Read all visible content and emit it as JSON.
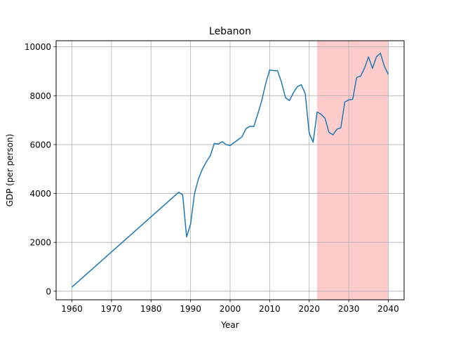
{
  "chart_data": {
    "type": "line",
    "title": "Lebanon",
    "xlabel": "Year",
    "ylabel": "GDP (per person)",
    "xlim": [
      1956,
      2044
    ],
    "ylim": [
      -350,
      10250
    ],
    "xticks": [
      1960,
      1970,
      1980,
      1990,
      2000,
      2010,
      2020,
      2030,
      2040
    ],
    "yticks": [
      0,
      2000,
      4000,
      6000,
      8000,
      10000
    ],
    "grid": true,
    "highlight_span": {
      "x_start": 2022,
      "x_end": 2040,
      "color": "#ffcccc"
    },
    "series": [
      {
        "color": "#1f77b4",
        "points": [
          [
            1960,
            170
          ],
          [
            1987,
            4050
          ],
          [
            1988,
            3950
          ],
          [
            1989,
            2220
          ],
          [
            1990,
            2750
          ],
          [
            1991,
            4000
          ],
          [
            1992,
            4600
          ],
          [
            1993,
            5000
          ],
          [
            1994,
            5300
          ],
          [
            1995,
            5550
          ],
          [
            1996,
            6050
          ],
          [
            1997,
            6020
          ],
          [
            1998,
            6120
          ],
          [
            1999,
            6000
          ],
          [
            2000,
            5960
          ],
          [
            2001,
            6080
          ],
          [
            2002,
            6200
          ],
          [
            2003,
            6320
          ],
          [
            2004,
            6650
          ],
          [
            2005,
            6750
          ],
          [
            2006,
            6740
          ],
          [
            2007,
            7250
          ],
          [
            2008,
            7800
          ],
          [
            2009,
            8500
          ],
          [
            2010,
            9050
          ],
          [
            2011,
            9030
          ],
          [
            2012,
            9020
          ],
          [
            2013,
            8550
          ],
          [
            2014,
            7920
          ],
          [
            2015,
            7800
          ],
          [
            2016,
            8120
          ],
          [
            2017,
            8370
          ],
          [
            2018,
            8450
          ],
          [
            2019,
            8080
          ],
          [
            2020,
            6470
          ],
          [
            2021,
            6090
          ],
          [
            2022,
            7330
          ],
          [
            2023,
            7240
          ],
          [
            2024,
            7080
          ],
          [
            2025,
            6500
          ],
          [
            2026,
            6400
          ],
          [
            2027,
            6630
          ],
          [
            2028,
            6690
          ],
          [
            2029,
            7740
          ],
          [
            2030,
            7830
          ],
          [
            2031,
            7850
          ],
          [
            2032,
            8750
          ],
          [
            2033,
            8800
          ],
          [
            2034,
            9130
          ],
          [
            2035,
            9590
          ],
          [
            2036,
            9120
          ],
          [
            2037,
            9590
          ],
          [
            2038,
            9740
          ],
          [
            2039,
            9210
          ],
          [
            2040,
            8870
          ]
        ]
      }
    ]
  }
}
